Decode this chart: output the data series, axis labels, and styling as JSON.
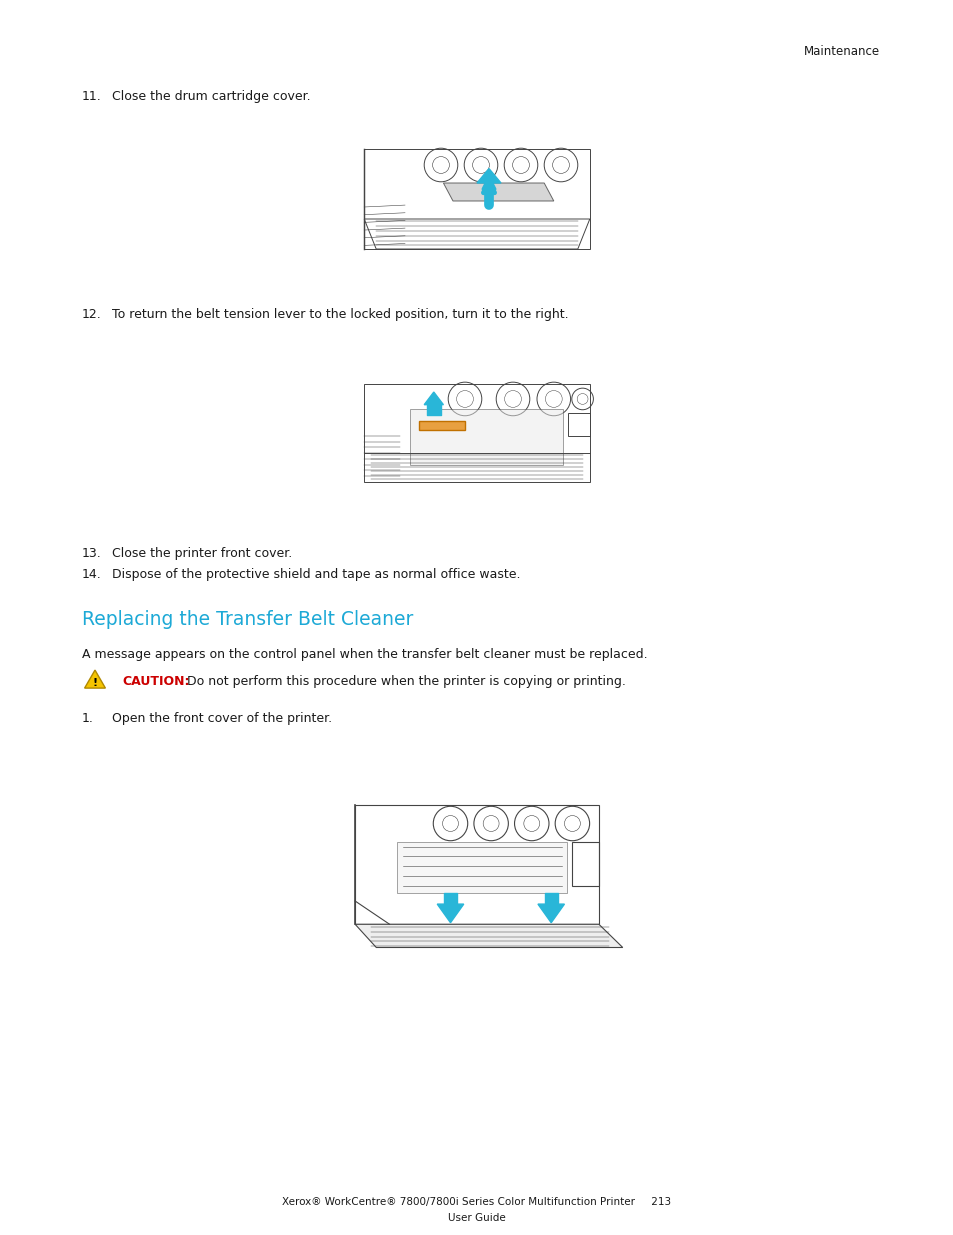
{
  "bg_color": "#ffffff",
  "text_color": "#1a1a1a",
  "header_text": "Maintenance",
  "header_font_size": 8.5,
  "section_title": "Replacing the Transfer Belt Cleaner",
  "section_title_color": "#1da9d6",
  "section_title_font_size": 13.5,
  "body_font_size": 9,
  "step_font_size": 9,
  "caution_color": "#cc0000",
  "caution_label": "CAUTION:",
  "caution_rest": " Do not perform this procedure when the printer is copying or printing.",
  "footer_line1": "Xerox® WorkCentre® 7800/7800i Series Color Multifunction Printer     213",
  "footer_line2": "User Guide",
  "footer_font_size": 7.5,
  "step11_num": "11.",
  "step11_text": "Close the drum cartridge cover.",
  "step12_num": "12.",
  "step12_text": "To return the belt tension lever to the locked position, turn it to the right.",
  "step13_num": "13.",
  "step13_text": "Close the printer front cover.",
  "step14_num": "14.",
  "step14_text": "Dispose of the protective shield and tape as normal office waste.",
  "step1_num": "1.",
  "step1_text": "Open the front cover of the printer.",
  "section_body": "A message appears on the control panel when the transfer belt cleaner must be replaced.",
  "arrow_color": "#29b6d8",
  "orange_color": "#e8a040",
  "sketch_line_color": "#444444",
  "sketch_bg": "#f8f8f8"
}
